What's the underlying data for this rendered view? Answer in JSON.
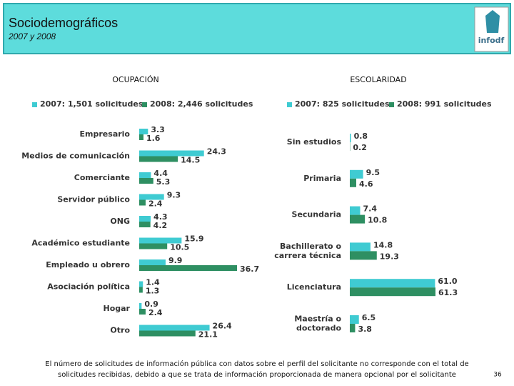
{
  "header": {
    "title": "Sociodemográficos",
    "subtitle": "2007 y 2008",
    "logo": "infodf"
  },
  "chart_data": [
    {
      "type": "bar",
      "orientation": "horizontal",
      "title": "OCUPACIÓN",
      "legend": "top",
      "categories": [
        "Empresario",
        "Medios de comunicación",
        "Comerciante",
        "Servidor público",
        "ONG",
        "Académico estudiante",
        "Empleado u obrero",
        "Asociación política",
        "Hogar",
        "Otro"
      ],
      "series": [
        {
          "name": "2007: 1,501 solicitudes",
          "color": "#3fcbd2",
          "values": [
            3.3,
            24.3,
            4.4,
            9.3,
            4.3,
            15.9,
            9.9,
            1.4,
            0.9,
            26.4
          ]
        },
        {
          "name": "2008: 2,446 solicitudes",
          "color": "#2e8f62",
          "values": [
            1.6,
            14.5,
            5.3,
            2.4,
            4.2,
            10.5,
            36.7,
            1.3,
            2.4,
            21.1
          ]
        }
      ]
    },
    {
      "type": "bar",
      "orientation": "horizontal",
      "title": "ESCOLARIDAD",
      "legend": "top",
      "categories": [
        "Sin estudios",
        "Primaria",
        "Secundaria",
        "Bachillerato o\ncarrera técnica",
        "Licenciatura",
        "Maestría o\ndoctorado"
      ],
      "series": [
        {
          "name": "2007: 825 solicitudes",
          "color": "#3fcbd2",
          "values": [
            0.8,
            9.5,
            7.4,
            14.8,
            61.0,
            6.5
          ],
          "value_labels": [
            "0.8",
            "9.5",
            "7.4",
            "14.8",
            "61.0",
            "6.5"
          ]
        },
        {
          "name": "2008: 991 solicitudes",
          "color": "#2e8f62",
          "values": [
            0.2,
            4.6,
            10.8,
            19.3,
            61.3,
            3.8
          ]
        }
      ]
    }
  ],
  "footnote": "El número de solicitudes de información pública con datos sobre el perfil del solicitante no corresponde con el total de solicitudes recibidas, debido a que se trata de información proporcionada de manera opcional por el solicitante",
  "page_number": "36"
}
